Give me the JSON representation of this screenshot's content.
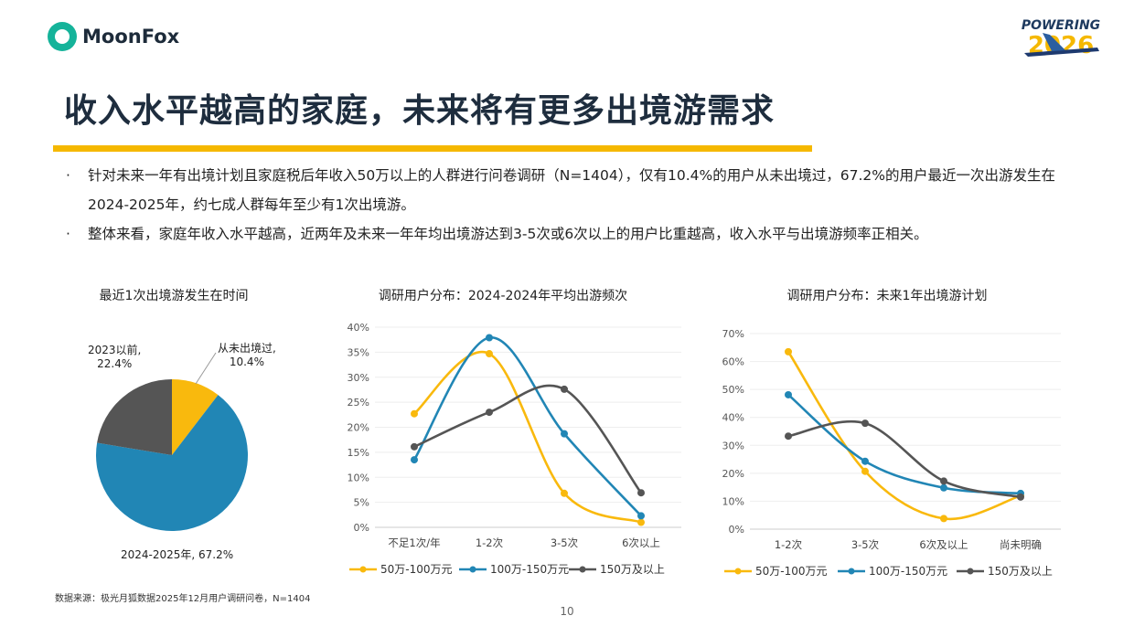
{
  "brand": "MoonFox",
  "event_logo": "POWERING 2026",
  "title": "收入水平越高的家庭，未来将有更多出境游需求",
  "bullets": [
    "针对未来一年有出境计划且家庭税后年收入50万以上的人群进行问卷调研（N=1404），仅有10.4%的用户从未出境过，67.2%的用户最近一次出游发生在2024-2025年，约七成人群每年至少有1次出境游。",
    "整体来看，家庭年收入水平越高，近两年及未来一年年均出境游达到3-5次或6次以上的用户比重越高，收入水平与出境游频率正相关。"
  ],
  "source": "数据来源：极光月狐数据2025年12月用户调研问卷，N=1404",
  "page_number": "10",
  "colors": {
    "yellow": "#f9b90d",
    "blue": "#2186b5",
    "gray": "#555555",
    "accent": "#f5b800"
  },
  "chart_data": [
    {
      "type": "pie",
      "title": "最近1次出境游发生在时间",
      "slices": [
        {
          "label": "从未出境过",
          "value": 10.4,
          "text": "从未出境过,",
          "pct": "10.4%",
          "color": "#f9b90d"
        },
        {
          "label": "2024-2025年",
          "value": 67.2,
          "text": "2024-2025年, 67.2%",
          "color": "#2186b5"
        },
        {
          "label": "2023以前",
          "value": 22.4,
          "text": "2023以前,",
          "pct": "22.4%",
          "color": "#555555"
        }
      ]
    },
    {
      "type": "line",
      "title": "调研用户分布：2024-2024年平均出游频次",
      "categories": [
        "不足1次/年",
        "1-2次",
        "3-5次",
        "6次以上"
      ],
      "ylim": [
        0,
        40
      ],
      "yticks": [
        "0%",
        "5%",
        "10%",
        "15%",
        "20%",
        "25%",
        "30%",
        "35%",
        "40%"
      ],
      "grid": true,
      "legend": "bottom",
      "series": [
        {
          "name": "50万-100万元",
          "color": "#f9b90d",
          "values": [
            22.7,
            34.7,
            6.8,
            1.0
          ]
        },
        {
          "name": "100万-150万元",
          "color": "#2186b5",
          "values": [
            13.5,
            37.9,
            18.7,
            2.3
          ]
        },
        {
          "name": "150万及以上",
          "color": "#555555",
          "values": [
            16.1,
            23.0,
            27.6,
            6.9
          ]
        }
      ]
    },
    {
      "type": "line",
      "title": "调研用户分布：未来1年出境游计划",
      "categories": [
        "1-2次",
        "3-5次",
        "6次及以上",
        "尚未明确"
      ],
      "ylim": [
        0,
        70
      ],
      "yticks": [
        "0%",
        "10%",
        "20%",
        "30%",
        "40%",
        "50%",
        "60%",
        "70%"
      ],
      "grid": true,
      "legend": "bottom",
      "series": [
        {
          "name": "50万-100万元",
          "color": "#f9b90d",
          "values": [
            63.5,
            20.7,
            3.8,
            12.0
          ]
        },
        {
          "name": "100万-150万元",
          "color": "#2186b5",
          "values": [
            48.1,
            24.3,
            14.8,
            12.8
          ]
        },
        {
          "name": "150万及以上",
          "color": "#555555",
          "values": [
            33.3,
            37.9,
            17.2,
            11.5
          ]
        }
      ]
    }
  ]
}
